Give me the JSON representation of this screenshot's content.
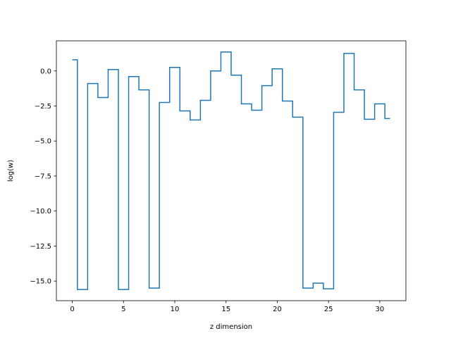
{
  "chart_data": {
    "type": "line",
    "step": "mid",
    "title": "",
    "xlabel": "z dimension",
    "ylabel": "log(w)",
    "xlim": [
      -1.55,
      32.55
    ],
    "ylim": [
      -16.4,
      2.15
    ],
    "xticks": [
      0,
      5,
      10,
      15,
      20,
      25,
      30
    ],
    "xtick_labels": [
      "0",
      "5",
      "10",
      "15",
      "20",
      "25",
      "30"
    ],
    "yticks": [
      0.0,
      -2.5,
      -5.0,
      -7.5,
      -10.0,
      -12.5,
      -15.0
    ],
    "ytick_labels": [
      "0.0",
      "−2.5",
      "−5.0",
      "−7.5",
      "−10.0",
      "−12.5",
      "−15.0"
    ],
    "grid": false,
    "line_color": "#1f77b4",
    "series": [
      {
        "x": [
          0,
          1,
          2,
          3,
          4,
          5,
          6,
          7,
          8,
          9,
          10,
          11,
          12,
          13,
          14,
          15,
          16,
          17,
          18,
          19,
          20,
          21,
          22,
          23,
          24,
          25,
          26,
          27,
          28,
          29,
          30,
          31
        ],
        "values": [
          0.8,
          -15.6,
          -0.9,
          -1.9,
          0.1,
          -15.6,
          -0.4,
          -1.35,
          -15.5,
          -2.25,
          0.25,
          -2.85,
          -3.5,
          -2.1,
          0.0,
          1.35,
          -0.3,
          -2.35,
          -2.8,
          -1.05,
          0.15,
          -2.15,
          -3.3,
          -15.5,
          -15.15,
          -15.55,
          -2.95,
          1.25,
          -1.35,
          -3.45,
          -2.35,
          -3.4
        ]
      }
    ]
  }
}
